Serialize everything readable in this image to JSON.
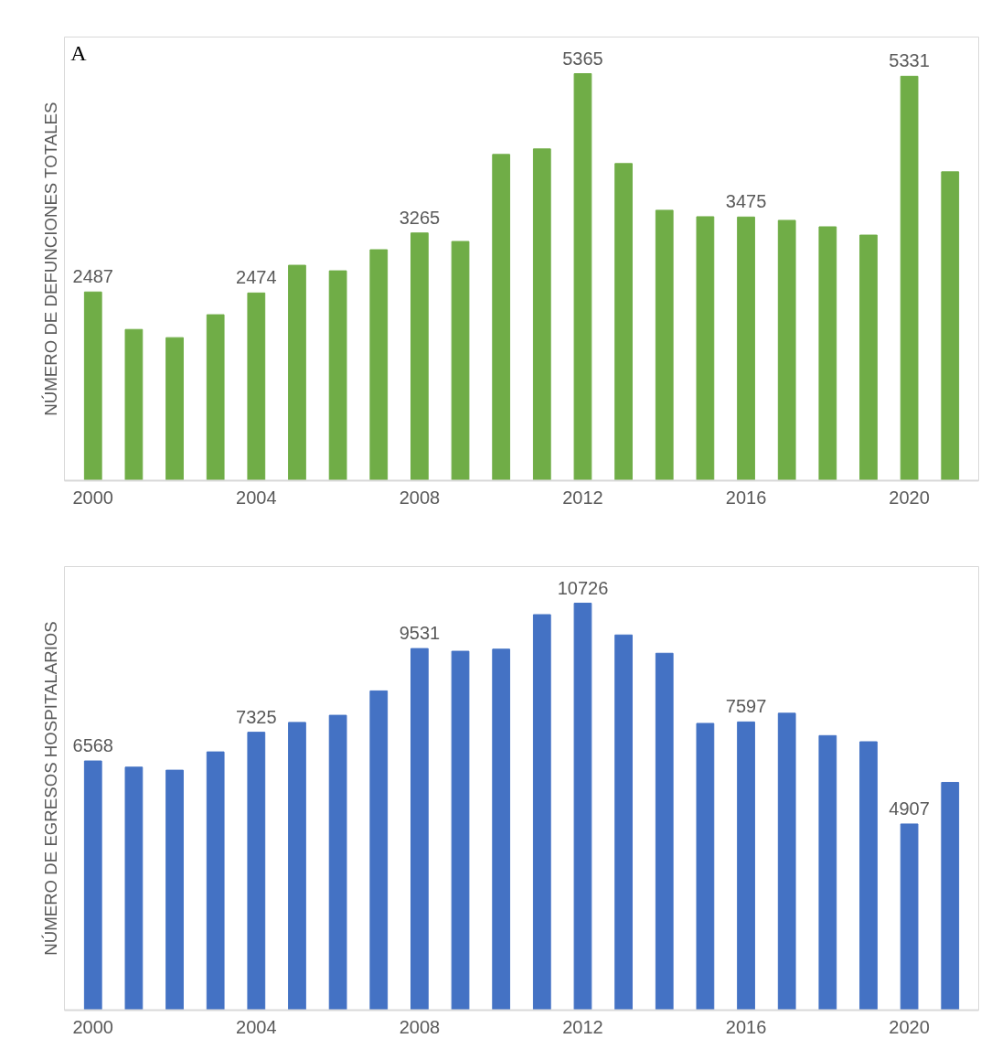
{
  "chart_data": [
    {
      "type": "bar",
      "ylabel": "NÚMERO DE DEFUNCIONES TOTALES",
      "annotations": [
        "A"
      ],
      "categories": [
        "2000",
        null,
        null,
        null,
        "2004",
        null,
        null,
        null,
        "2008",
        null,
        null,
        null,
        "2012",
        null,
        null,
        null,
        "2016",
        null,
        null,
        null,
        "2020",
        null
      ],
      "values": [
        2487,
        1993,
        1885,
        2187,
        2474,
        2839,
        2766,
        3044,
        3265,
        3153,
        4300,
        4373,
        5365,
        4180,
        3564,
        3479,
        3475,
        3431,
        3346,
        3237,
        5331,
        4071
      ],
      "value_labels": [
        "2487",
        null,
        null,
        null,
        "2474",
        null,
        null,
        null,
        "3265",
        null,
        null,
        null,
        "5365",
        null,
        null,
        null,
        "3475",
        null,
        null,
        null,
        "5331",
        null
      ],
      "color": "#70ad47",
      "grid": false,
      "tick_labels": "x"
    },
    {
      "type": "bar",
      "ylabel": "NÚMERO DE EGRESOS HOSPITALARIOS",
      "categories": [
        "2000",
        null,
        null,
        null,
        "2004",
        null,
        null,
        null,
        "2008",
        null,
        null,
        null,
        "2012",
        null,
        null,
        null,
        "2016",
        null,
        null,
        null,
        "2020",
        null
      ],
      "values": [
        6568,
        6405,
        6325,
        6807,
        7325,
        7584,
        7772,
        8415,
        9531,
        9460,
        9514,
        10425,
        10726,
        9889,
        9407,
        7558,
        7597,
        7826,
        7236,
        7075,
        4907,
        6003
      ],
      "value_labels": [
        "6568",
        null,
        null,
        null,
        "7325",
        null,
        null,
        null,
        "9531",
        null,
        null,
        null,
        "10726",
        null,
        null,
        null,
        "7597",
        null,
        null,
        null,
        "4907",
        null
      ],
      "color": "#4472c4",
      "grid": false,
      "tick_labels": "x"
    }
  ]
}
